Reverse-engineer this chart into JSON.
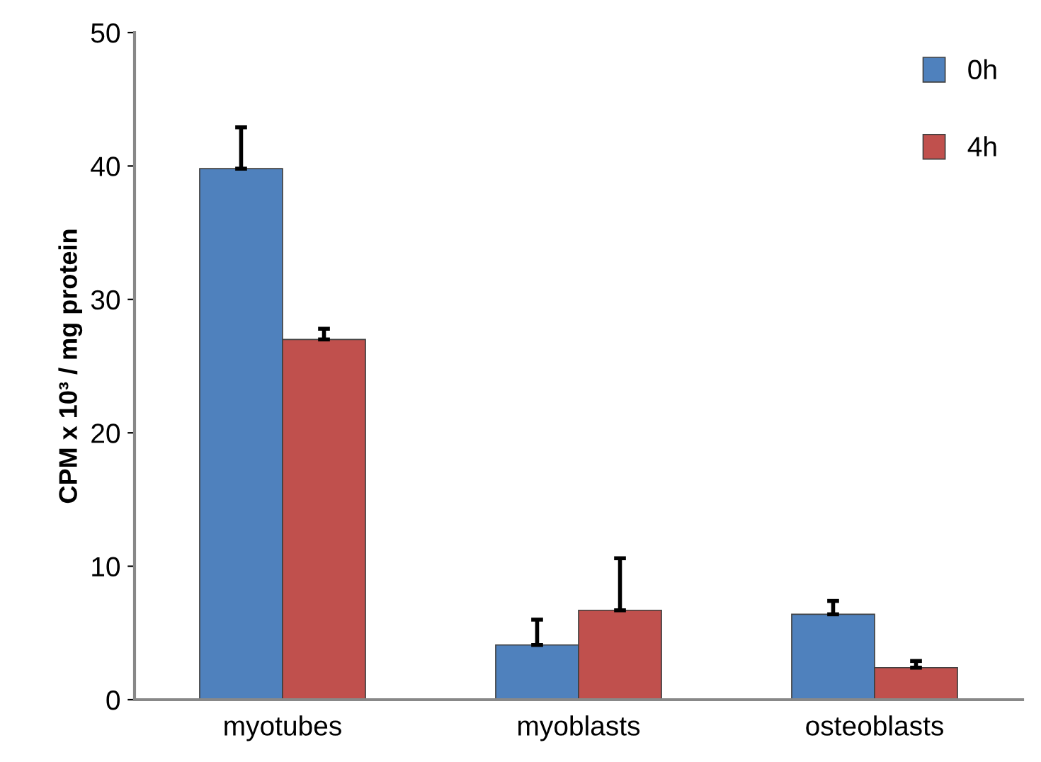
{
  "chart_data": {
    "type": "bar",
    "ylabel": "CPM x 10³ / mg protein",
    "categories": [
      "myotubes",
      "myoblasts",
      "osteoblasts"
    ],
    "series": [
      {
        "name": "0h",
        "color": "#4f81bd",
        "values": [
          39.8,
          4.1,
          6.4
        ],
        "errors": [
          [
            39.8,
            42.9
          ],
          [
            4.1,
            6.0
          ],
          [
            6.4,
            7.4
          ]
        ]
      },
      {
        "name": "4h",
        "color": "#c0504d",
        "values": [
          27.0,
          6.7,
          2.4
        ],
        "errors": [
          [
            27.0,
            27.8
          ],
          [
            6.7,
            10.6
          ],
          [
            2.4,
            2.9
          ]
        ]
      }
    ],
    "ylim": [
      0,
      50
    ],
    "yticks": [
      0,
      10,
      20,
      30,
      40,
      50
    ],
    "grid": false,
    "legend": "top right"
  }
}
